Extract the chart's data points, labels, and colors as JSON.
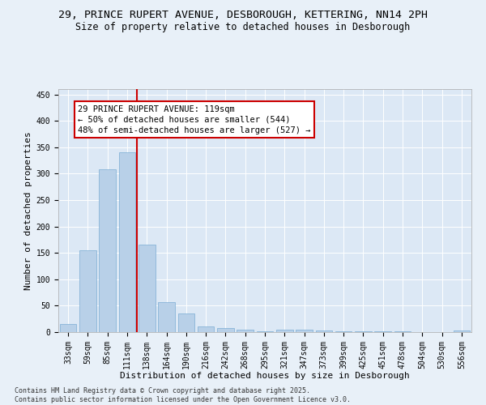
{
  "title_line1": "29, PRINCE RUPERT AVENUE, DESBOROUGH, KETTERING, NN14 2PH",
  "title_line2": "Size of property relative to detached houses in Desborough",
  "xlabel": "Distribution of detached houses by size in Desborough",
  "ylabel": "Number of detached properties",
  "categories": [
    "33sqm",
    "59sqm",
    "85sqm",
    "111sqm",
    "138sqm",
    "164sqm",
    "190sqm",
    "216sqm",
    "242sqm",
    "268sqm",
    "295sqm",
    "321sqm",
    "347sqm",
    "373sqm",
    "399sqm",
    "425sqm",
    "451sqm",
    "478sqm",
    "504sqm",
    "530sqm",
    "556sqm"
  ],
  "values": [
    15,
    155,
    308,
    340,
    165,
    57,
    35,
    10,
    8,
    5,
    2,
    5,
    5,
    3,
    2,
    1,
    1,
    1,
    0,
    0,
    3
  ],
  "bar_color": "#b8d0e8",
  "bar_edge_color": "#7aadd4",
  "vline_color": "#cc0000",
  "vline_index": 3.5,
  "annotation_text": "29 PRINCE RUPERT AVENUE: 119sqm\n← 50% of detached houses are smaller (544)\n48% of semi-detached houses are larger (527) →",
  "annotation_box_edge_color": "#cc0000",
  "ylim": [
    0,
    460
  ],
  "yticks": [
    0,
    50,
    100,
    150,
    200,
    250,
    300,
    350,
    400,
    450
  ],
  "bg_color": "#dce8f5",
  "fig_bg_color": "#e8f0f8",
  "footer_line1": "Contains HM Land Registry data © Crown copyright and database right 2025.",
  "footer_line2": "Contains public sector information licensed under the Open Government Licence v3.0.",
  "title_fontsize": 9.5,
  "subtitle_fontsize": 8.5,
  "axis_label_fontsize": 8,
  "tick_fontsize": 7,
  "annotation_fontsize": 7.5,
  "footer_fontsize": 6
}
